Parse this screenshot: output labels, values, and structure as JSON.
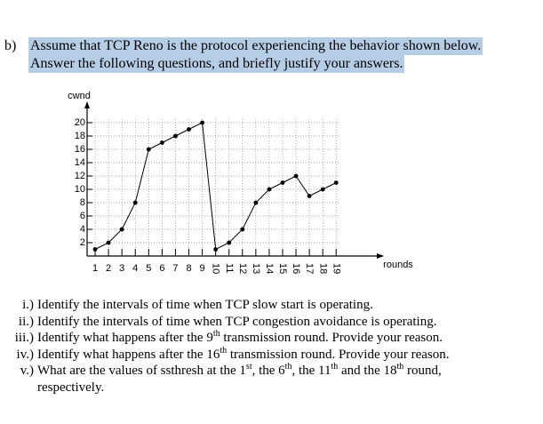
{
  "question": {
    "label": "b)",
    "lines": [
      "Assume that TCP Reno is the protocol experiencing the behavior shown below.",
      "Answer the following questions, and briefly justify your answers."
    ]
  },
  "chart_data": {
    "type": "line",
    "y_label": "cwnd",
    "x_label": "rounds",
    "x": [
      1,
      2,
      3,
      4,
      5,
      6,
      7,
      8,
      9,
      10,
      11,
      12,
      13,
      14,
      15,
      16,
      17,
      18,
      19
    ],
    "values": [
      1,
      2,
      4,
      8,
      16,
      17,
      18,
      19,
      20,
      1,
      2,
      4,
      8,
      10,
      11,
      12,
      9,
      10,
      11
    ],
    "color": "#000000",
    "markers": true,
    "grid": true,
    "xlim": [
      0.4,
      22.5
    ],
    "ylim": [
      0,
      21.5
    ],
    "xticks": [
      1,
      2,
      3,
      4,
      5,
      6,
      7,
      8,
      9,
      10,
      11,
      12,
      13,
      14,
      15,
      16,
      17,
      18,
      19
    ],
    "yticks": [
      2,
      4,
      6,
      8,
      10,
      12,
      14,
      16,
      18,
      20
    ]
  },
  "items": [
    {
      "marker": "i.)",
      "segments": [
        {
          "text": "Identify the intervals of time when TCP slow start is operating."
        }
      ]
    },
    {
      "marker": "ii.)",
      "segments": [
        {
          "text": "Identify the intervals of time when TCP congestion avoidance is operating."
        }
      ]
    },
    {
      "marker": "iii.)",
      "segments": [
        {
          "text": "Identify what happens after the 9",
          "sup": "th"
        },
        {
          "text": " transmission round. Provide your reason."
        }
      ]
    },
    {
      "marker": "iv.)",
      "segments": [
        {
          "text": "Identify what happens after the 16",
          "sup": "th"
        },
        {
          "text": " transmission round. Provide your reason."
        }
      ]
    },
    {
      "marker": "v.)",
      "segments": [
        {
          "text": "What are the values of ssthresh at the 1",
          "sup": "st"
        },
        {
          "text": ", the 6",
          "sup": "th"
        },
        {
          "text": ", the 11",
          "sup": "th"
        },
        {
          "text": " and the 18",
          "sup": "th"
        },
        {
          "text": " round, respectively."
        }
      ]
    }
  ]
}
